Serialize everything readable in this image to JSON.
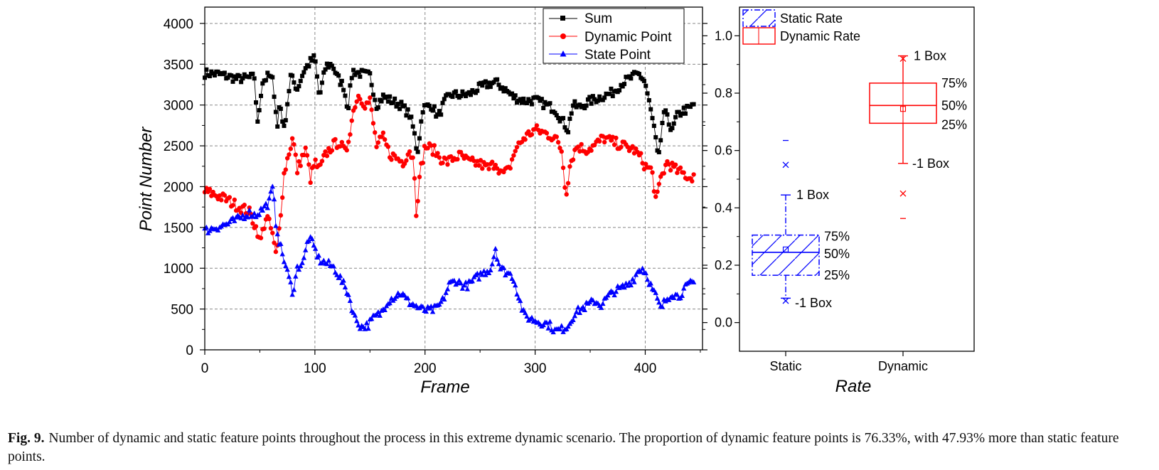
{
  "chart_data": [
    {
      "type": "line",
      "title": "",
      "xlabel": "Frame",
      "ylabel": "Point Number",
      "xlim": [
        0,
        452
      ],
      "ylim": [
        0,
        4200
      ],
      "x_ticks": [
        "0",
        "100",
        "200",
        "300",
        "400"
      ],
      "y_ticks": [
        "0",
        "500",
        "1000",
        "1500",
        "2000",
        "2500",
        "3000",
        "3500",
        "4000"
      ],
      "grid": true,
      "legend_position": "top-right",
      "series": [
        {
          "name": "Sum",
          "color": "#000000",
          "marker": "square",
          "keyframes": [
            [
              0,
              3390
            ],
            [
              12,
              3380
            ],
            [
              30,
              3320
            ],
            [
              45,
              3340
            ],
            [
              48,
              2760
            ],
            [
              52,
              3280
            ],
            [
              58,
              3360
            ],
            [
              62,
              3290
            ],
            [
              66,
              2730
            ],
            [
              68,
              3050
            ],
            [
              72,
              2700
            ],
            [
              78,
              3350
            ],
            [
              84,
              3200
            ],
            [
              90,
              3420
            ],
            [
              96,
              3530
            ],
            [
              100,
              3580
            ],
            [
              104,
              3090
            ],
            [
              110,
              3480
            ],
            [
              116,
              3500
            ],
            [
              120,
              3350
            ],
            [
              126,
              3230
            ],
            [
              130,
              2950
            ],
            [
              134,
              3420
            ],
            [
              140,
              3390
            ],
            [
              150,
              3360
            ],
            [
              156,
              3000
            ],
            [
              162,
              3100
            ],
            [
              170,
              3050
            ],
            [
              178,
              3000
            ],
            [
              186,
              2880
            ],
            [
              190,
              2680
            ],
            [
              193,
              2400
            ],
            [
              198,
              2960
            ],
            [
              206,
              3000
            ],
            [
              212,
              2850
            ],
            [
              218,
              3050
            ],
            [
              224,
              3130
            ],
            [
              232,
              3120
            ],
            [
              240,
              3130
            ],
            [
              248,
              3200
            ],
            [
              256,
              3250
            ],
            [
              264,
              3280
            ],
            [
              272,
              3200
            ],
            [
              280,
              3100
            ],
            [
              290,
              3050
            ],
            [
              300,
              3060
            ],
            [
              310,
              3000
            ],
            [
              318,
              2950
            ],
            [
              326,
              2780
            ],
            [
              330,
              2700
            ],
            [
              334,
              3000
            ],
            [
              340,
              2970
            ],
            [
              350,
              3050
            ],
            [
              360,
              3100
            ],
            [
              370,
              3150
            ],
            [
              380,
              3280
            ],
            [
              388,
              3340
            ],
            [
              394,
              3380
            ],
            [
              398,
              3320
            ],
            [
              400,
              3270
            ],
            [
              404,
              3000
            ],
            [
              408,
              2720
            ],
            [
              412,
              2300
            ],
            [
              416,
              2850
            ],
            [
              420,
              2900
            ],
            [
              424,
              2650
            ],
            [
              428,
              2850
            ],
            [
              434,
              2930
            ],
            [
              440,
              2950
            ],
            [
              445,
              3020
            ]
          ]
        },
        {
          "name": "Dynamic Point",
          "color": "#ff0000",
          "marker": "circle",
          "keyframes": [
            [
              0,
              1940
            ],
            [
              10,
              1900
            ],
            [
              20,
              1840
            ],
            [
              30,
              1760
            ],
            [
              40,
              1700
            ],
            [
              48,
              1450
            ],
            [
              50,
              1300
            ],
            [
              56,
              1650
            ],
            [
              62,
              1400
            ],
            [
              64,
              1150
            ],
            [
              66,
              1250
            ],
            [
              70,
              1850
            ],
            [
              72,
              2150
            ],
            [
              76,
              2400
            ],
            [
              80,
              2600
            ],
            [
              84,
              2200
            ],
            [
              88,
              2350
            ],
            [
              92,
              2450
            ],
            [
              96,
              2100
            ],
            [
              100,
              2300
            ],
            [
              104,
              2200
            ],
            [
              110,
              2400
            ],
            [
              116,
              2500
            ],
            [
              122,
              2550
            ],
            [
              128,
              2400
            ],
            [
              132,
              2700
            ],
            [
              136,
              3000
            ],
            [
              140,
              3130
            ],
            [
              146,
              3000
            ],
            [
              150,
              3050
            ],
            [
              156,
              2500
            ],
            [
              162,
              2600
            ],
            [
              168,
              2400
            ],
            [
              174,
              2350
            ],
            [
              180,
              2300
            ],
            [
              186,
              2450
            ],
            [
              190,
              2300
            ],
            [
              192,
              1700
            ],
            [
              196,
              2200
            ],
            [
              200,
              2500
            ],
            [
              208,
              2450
            ],
            [
              214,
              2350
            ],
            [
              220,
              2300
            ],
            [
              226,
              2350
            ],
            [
              232,
              2380
            ],
            [
              240,
              2300
            ],
            [
              250,
              2280
            ],
            [
              258,
              2220
            ],
            [
              264,
              2300
            ],
            [
              270,
              2150
            ],
            [
              276,
              2200
            ],
            [
              282,
              2450
            ],
            [
              290,
              2600
            ],
            [
              300,
              2700
            ],
            [
              310,
              2650
            ],
            [
              318,
              2600
            ],
            [
              324,
              2450
            ],
            [
              328,
              1900
            ],
            [
              332,
              2300
            ],
            [
              338,
              2500
            ],
            [
              346,
              2450
            ],
            [
              354,
              2500
            ],
            [
              362,
              2600
            ],
            [
              370,
              2550
            ],
            [
              380,
              2500
            ],
            [
              390,
              2450
            ],
            [
              396,
              2350
            ],
            [
              400,
              2250
            ],
            [
              406,
              2200
            ],
            [
              410,
              1800
            ],
            [
              414,
              2100
            ],
            [
              420,
              2300
            ],
            [
              428,
              2200
            ],
            [
              436,
              2150
            ],
            [
              440,
              2100
            ],
            [
              445,
              2150
            ]
          ]
        },
        {
          "name": "State Point",
          "color": "#0000ff",
          "marker": "triangle",
          "keyframes": [
            [
              0,
              1460
            ],
            [
              10,
              1500
            ],
            [
              20,
              1540
            ],
            [
              30,
              1600
            ],
            [
              40,
              1680
            ],
            [
              46,
              1650
            ],
            [
              52,
              1720
            ],
            [
              58,
              1800
            ],
            [
              62,
              2000
            ],
            [
              64,
              1600
            ],
            [
              68,
              1300
            ],
            [
              72,
              1100
            ],
            [
              76,
              900
            ],
            [
              80,
              700
            ],
            [
              84,
              1000
            ],
            [
              90,
              1100
            ],
            [
              94,
              1380
            ],
            [
              98,
              1300
            ],
            [
              104,
              1100
            ],
            [
              112,
              1050
            ],
            [
              118,
              1000
            ],
            [
              124,
              850
            ],
            [
              130,
              700
            ],
            [
              136,
              400
            ],
            [
              142,
              280
            ],
            [
              148,
              300
            ],
            [
              154,
              400
            ],
            [
              160,
              450
            ],
            [
              166,
              600
            ],
            [
              172,
              650
            ],
            [
              178,
              700
            ],
            [
              184,
              600
            ],
            [
              190,
              550
            ],
            [
              196,
              500
            ],
            [
              202,
              480
            ],
            [
              210,
              500
            ],
            [
              216,
              600
            ],
            [
              222,
              800
            ],
            [
              228,
              850
            ],
            [
              236,
              780
            ],
            [
              240,
              800
            ],
            [
              248,
              900
            ],
            [
              254,
              950
            ],
            [
              260,
              1000
            ],
            [
              264,
              1250
            ],
            [
              268,
              1000
            ],
            [
              274,
              950
            ],
            [
              280,
              900
            ],
            [
              284,
              700
            ],
            [
              290,
              420
            ],
            [
              296,
              380
            ],
            [
              302,
              350
            ],
            [
              308,
              330
            ],
            [
              314,
              300
            ],
            [
              318,
              230
            ],
            [
              324,
              250
            ],
            [
              330,
              300
            ],
            [
              336,
              450
            ],
            [
              342,
              500
            ],
            [
              348,
              550
            ],
            [
              354,
              600
            ],
            [
              360,
              550
            ],
            [
              366,
              650
            ],
            [
              372,
              720
            ],
            [
              378,
              750
            ],
            [
              384,
              800
            ],
            [
              390,
              880
            ],
            [
              394,
              980
            ],
            [
              398,
              1000
            ],
            [
              402,
              900
            ],
            [
              406,
              750
            ],
            [
              410,
              650
            ],
            [
              414,
              500
            ],
            [
              418,
              600
            ],
            [
              424,
              700
            ],
            [
              430,
              650
            ],
            [
              436,
              750
            ],
            [
              440,
              800
            ],
            [
              445,
              830
            ]
          ]
        }
      ]
    },
    {
      "type": "box",
      "title": "",
      "xlabel": "Rate",
      "ylabel": "",
      "categories": [
        "Static",
        "Dynamic"
      ],
      "ylim": [
        -0.1,
        1.1
      ],
      "y_ticks": [
        "0.0",
        "0.2",
        "0.4",
        "0.6",
        "0.8",
        "1.0"
      ],
      "legend_position": "top-left",
      "boxes": [
        {
          "name": "Static Rate",
          "color": "#0000ff",
          "q1": 0.165,
          "median": 0.245,
          "q3": 0.305,
          "mean": 0.255,
          "whisker_low": 0.085,
          "whisker_high": 0.445,
          "x_marks": [
            0.076,
            0.55
          ],
          "dash_marks": [
            0.635
          ]
        },
        {
          "name": "Dynamic Rate",
          "color": "#ff0000",
          "q1": 0.695,
          "median": 0.757,
          "q3": 0.835,
          "mean": 0.745,
          "whisker_low": 0.555,
          "whisker_high": 0.93,
          "x_marks": [
            0.92,
            0.45
          ],
          "dash_marks": [
            0.363
          ]
        }
      ],
      "annotations": [
        {
          "box": 0,
          "at": 0.445,
          "text": "1 Box"
        },
        {
          "box": 0,
          "at": 0.3,
          "text": "75%"
        },
        {
          "box": 0,
          "at": 0.24,
          "text": "50%"
        },
        {
          "box": 0,
          "at": 0.165,
          "text": "25%"
        },
        {
          "box": 0,
          "at": 0.068,
          "text": "-1 Box"
        },
        {
          "box": 1,
          "at": 0.93,
          "text": "1 Box"
        },
        {
          "box": 1,
          "at": 0.835,
          "text": "75%"
        },
        {
          "box": 1,
          "at": 0.757,
          "text": "50%"
        },
        {
          "box": 1,
          "at": 0.69,
          "text": "25%"
        },
        {
          "box": 1,
          "at": 0.555,
          "text": "-1 Box"
        }
      ]
    }
  ],
  "caption": {
    "label": "Fig. 9.",
    "text": "Number of dynamic and static feature points throughout the process in this extreme dynamic scenario. The proportion of dynamic feature points is 76.33%, with 47.93% more than static feature points."
  }
}
